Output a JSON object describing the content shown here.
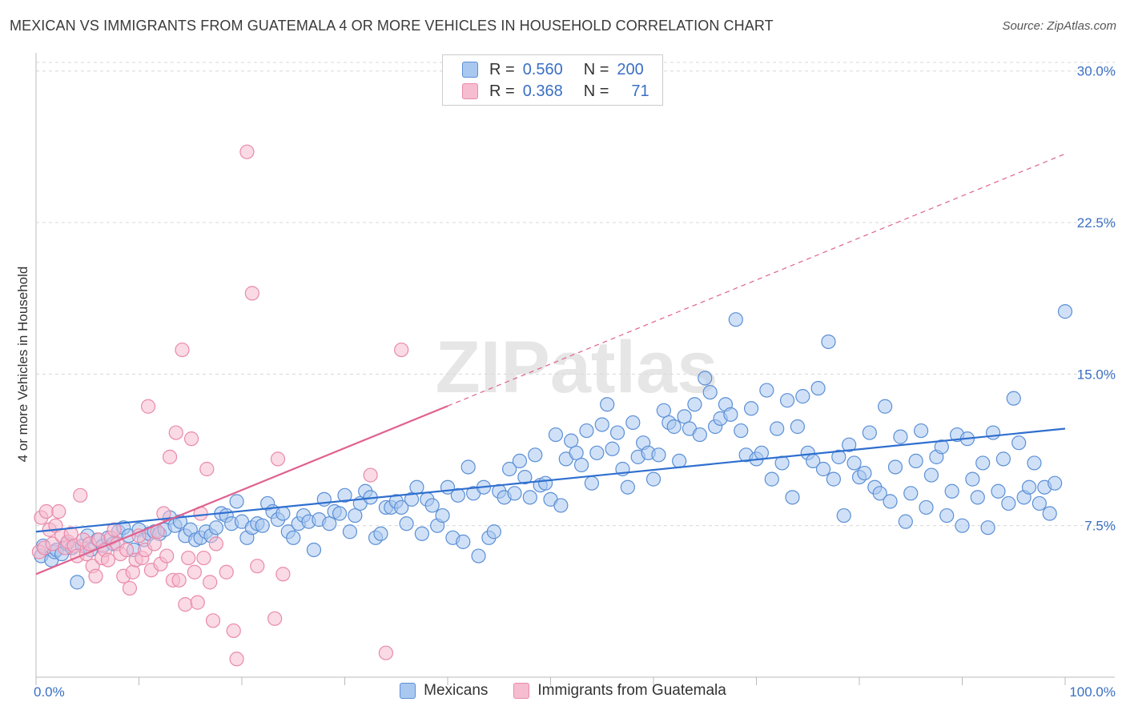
{
  "title": "MEXICAN VS IMMIGRANTS FROM GUATEMALA 4 OR MORE VEHICLES IN HOUSEHOLD CORRELATION CHART",
  "source": "Source: ZipAtlas.com",
  "watermark": "ZIPatlas",
  "colors": {
    "blue_fill": "#a9c8f0",
    "blue_stroke": "#5b8fd6",
    "blue_line": "#2f6fcf",
    "pink_fill": "#f6bcd0",
    "pink_stroke": "#e98aa9",
    "pink_line": "#e0618f",
    "grid": "#d8d8d8",
    "tick_label": "#3a6fc4"
  },
  "legend": {
    "rows": [
      {
        "r_label": "R =",
        "r_value": "0.560",
        "n_label": "N =",
        "n_value": "200"
      },
      {
        "r_label": "R =",
        "r_value": "0.368",
        "n_label": "N =",
        "n_value": "71"
      }
    ]
  },
  "bottom_legend": [
    "Mexicans",
    "Immigrants from Guatemala"
  ],
  "chart_data": {
    "type": "scatter",
    "title": "MEXICAN VS IMMIGRANTS FROM GUATEMALA 4 OR MORE VEHICLES IN HOUSEHOLD CORRELATION CHART",
    "xlabel": "",
    "ylabel": "4 or more Vehicles in Household",
    "xlim": [
      0,
      100
    ],
    "ylim": [
      0,
      30.9
    ],
    "x_tick_labels": [
      "0.0%",
      "100.0%"
    ],
    "y_ticks": [
      7.5,
      15.0,
      22.5,
      30.0
    ],
    "y_tick_labels": [
      "7.5%",
      "15.0%",
      "22.5%",
      "30.0%"
    ],
    "grid": true,
    "legend_position": "top-center",
    "series": [
      {
        "name": "Mexicans",
        "trend": {
          "x": [
            0,
            100
          ],
          "y": [
            7.2,
            12.3
          ],
          "style": "solid"
        },
        "points": [
          [
            0.5,
            6.0
          ],
          [
            0.7,
            6.5
          ],
          [
            1.5,
            5.8
          ],
          [
            1.8,
            6.2
          ],
          [
            2.0,
            6.3
          ],
          [
            2.5,
            6.1
          ],
          [
            3.0,
            6.6
          ],
          [
            3.5,
            6.4
          ],
          [
            4.0,
            4.7
          ],
          [
            4.5,
            6.5
          ],
          [
            5.0,
            7.0
          ],
          [
            5.3,
            6.3
          ],
          [
            6.0,
            6.8
          ],
          [
            6.5,
            6.5
          ],
          [
            7.0,
            6.9
          ],
          [
            7.5,
            6.6
          ],
          [
            8.0,
            7.2
          ],
          [
            8.5,
            7.4
          ],
          [
            9.0,
            7.0
          ],
          [
            9.5,
            6.3
          ],
          [
            10.0,
            7.3
          ],
          [
            10.5,
            6.8
          ],
          [
            11.0,
            7.1
          ],
          [
            11.5,
            7.2
          ],
          [
            12.0,
            7.1
          ],
          [
            12.5,
            7.3
          ],
          [
            13.0,
            7.9
          ],
          [
            13.5,
            7.5
          ],
          [
            14.0,
            7.7
          ],
          [
            14.5,
            7.0
          ],
          [
            15.0,
            7.3
          ],
          [
            15.5,
            6.8
          ],
          [
            16.0,
            6.9
          ],
          [
            16.5,
            7.2
          ],
          [
            17.0,
            7.0
          ],
          [
            17.5,
            7.4
          ],
          [
            18.0,
            8.1
          ],
          [
            18.5,
            8.0
          ],
          [
            19.0,
            7.6
          ],
          [
            19.5,
            8.7
          ],
          [
            20.0,
            7.7
          ],
          [
            20.5,
            6.9
          ],
          [
            21.0,
            7.4
          ],
          [
            21.5,
            7.6
          ],
          [
            22.0,
            7.5
          ],
          [
            22.5,
            8.6
          ],
          [
            23.0,
            8.2
          ],
          [
            23.5,
            7.8
          ],
          [
            24.0,
            8.1
          ],
          [
            24.5,
            7.2
          ],
          [
            25.0,
            6.9
          ],
          [
            25.5,
            7.6
          ],
          [
            26.0,
            8.0
          ],
          [
            26.5,
            7.7
          ],
          [
            27.0,
            6.3
          ],
          [
            27.5,
            7.8
          ],
          [
            28.0,
            8.8
          ],
          [
            28.5,
            7.6
          ],
          [
            29.0,
            8.2
          ],
          [
            29.5,
            8.1
          ],
          [
            30.0,
            9.0
          ],
          [
            30.5,
            7.2
          ],
          [
            31.0,
            8.0
          ],
          [
            31.5,
            8.6
          ],
          [
            32.0,
            9.2
          ],
          [
            32.5,
            8.9
          ],
          [
            33.0,
            6.9
          ],
          [
            33.5,
            7.1
          ],
          [
            34.0,
            8.4
          ],
          [
            34.5,
            8.4
          ],
          [
            35.0,
            8.7
          ],
          [
            35.5,
            8.4
          ],
          [
            36.0,
            7.6
          ],
          [
            36.5,
            8.8
          ],
          [
            37.0,
            9.4
          ],
          [
            37.5,
            7.1
          ],
          [
            38.0,
            8.8
          ],
          [
            38.5,
            8.5
          ],
          [
            39.0,
            7.5
          ],
          [
            39.5,
            8.0
          ],
          [
            40.0,
            9.4
          ],
          [
            40.5,
            6.9
          ],
          [
            41.0,
            9.0
          ],
          [
            41.5,
            6.7
          ],
          [
            42.0,
            10.4
          ],
          [
            42.5,
            9.1
          ],
          [
            43.0,
            6.0
          ],
          [
            43.5,
            9.4
          ],
          [
            44.0,
            6.9
          ],
          [
            44.5,
            7.2
          ],
          [
            45.0,
            9.2
          ],
          [
            45.5,
            8.9
          ],
          [
            46.0,
            10.3
          ],
          [
            46.5,
            9.1
          ],
          [
            47.0,
            10.7
          ],
          [
            47.5,
            9.9
          ],
          [
            48.0,
            8.9
          ],
          [
            48.5,
            11.0
          ],
          [
            49.0,
            9.5
          ],
          [
            49.5,
            9.6
          ],
          [
            50.0,
            8.8
          ],
          [
            50.5,
            12.0
          ],
          [
            51.0,
            8.5
          ],
          [
            51.5,
            10.8
          ],
          [
            52.0,
            11.7
          ],
          [
            52.5,
            11.1
          ],
          [
            53.0,
            10.5
          ],
          [
            53.5,
            12.2
          ],
          [
            54.0,
            9.6
          ],
          [
            54.5,
            11.1
          ],
          [
            55.0,
            12.5
          ],
          [
            55.5,
            13.5
          ],
          [
            56.0,
            11.3
          ],
          [
            56.5,
            12.1
          ],
          [
            57.0,
            10.3
          ],
          [
            57.5,
            9.4
          ],
          [
            58.0,
            12.6
          ],
          [
            58.5,
            10.9
          ],
          [
            59.0,
            11.6
          ],
          [
            59.5,
            11.1
          ],
          [
            60.0,
            9.8
          ],
          [
            60.5,
            11.0
          ],
          [
            61.0,
            13.2
          ],
          [
            61.5,
            12.6
          ],
          [
            62.0,
            12.4
          ],
          [
            62.5,
            10.7
          ],
          [
            63.0,
            12.9
          ],
          [
            63.5,
            12.3
          ],
          [
            64.0,
            13.5
          ],
          [
            64.5,
            12.0
          ],
          [
            65.0,
            14.8
          ],
          [
            65.5,
            14.1
          ],
          [
            66.0,
            12.4
          ],
          [
            66.5,
            12.8
          ],
          [
            67.0,
            13.5
          ],
          [
            67.5,
            13.0
          ],
          [
            68.0,
            17.7
          ],
          [
            68.5,
            12.2
          ],
          [
            69.0,
            11.0
          ],
          [
            69.5,
            13.3
          ],
          [
            70.0,
            10.8
          ],
          [
            70.5,
            11.1
          ],
          [
            71.0,
            14.2
          ],
          [
            71.5,
            9.8
          ],
          [
            72.0,
            12.3
          ],
          [
            72.5,
            10.6
          ],
          [
            73.0,
            13.7
          ],
          [
            73.5,
            8.9
          ],
          [
            74.0,
            12.4
          ],
          [
            74.5,
            13.9
          ],
          [
            75.0,
            11.1
          ],
          [
            75.5,
            10.7
          ],
          [
            76.0,
            14.3
          ],
          [
            76.5,
            10.3
          ],
          [
            77.0,
            16.6
          ],
          [
            77.5,
            9.8
          ],
          [
            78.0,
            10.9
          ],
          [
            78.5,
            8.0
          ],
          [
            79.0,
            11.5
          ],
          [
            79.5,
            10.6
          ],
          [
            80.0,
            9.9
          ],
          [
            80.5,
            10.1
          ],
          [
            81.0,
            12.1
          ],
          [
            81.5,
            9.4
          ],
          [
            82.0,
            9.1
          ],
          [
            82.5,
            13.4
          ],
          [
            83.0,
            8.7
          ],
          [
            83.5,
            10.4
          ],
          [
            84.0,
            11.9
          ],
          [
            84.5,
            7.7
          ],
          [
            85.0,
            9.1
          ],
          [
            85.5,
            10.7
          ],
          [
            86.0,
            12.2
          ],
          [
            86.5,
            8.4
          ],
          [
            87.0,
            10.0
          ],
          [
            87.5,
            10.9
          ],
          [
            88.0,
            11.4
          ],
          [
            88.5,
            8.0
          ],
          [
            89.0,
            9.2
          ],
          [
            89.5,
            12.0
          ],
          [
            90.0,
            7.5
          ],
          [
            90.5,
            11.8
          ],
          [
            91.0,
            9.8
          ],
          [
            91.5,
            8.9
          ],
          [
            92.0,
            10.6
          ],
          [
            92.5,
            7.4
          ],
          [
            93.0,
            12.1
          ],
          [
            93.5,
            9.2
          ],
          [
            94.0,
            10.8
          ],
          [
            94.5,
            8.6
          ],
          [
            95.0,
            13.8
          ],
          [
            95.5,
            11.6
          ],
          [
            96.0,
            8.9
          ],
          [
            96.5,
            9.4
          ],
          [
            97.0,
            10.6
          ],
          [
            97.5,
            8.6
          ],
          [
            98.0,
            9.4
          ],
          [
            98.5,
            8.1
          ],
          [
            99.0,
            9.6
          ],
          [
            100.0,
            18.1
          ]
        ]
      },
      {
        "name": "Immigrants from Guatemala",
        "trend": {
          "x": [
            0,
            100
          ],
          "y": [
            5.1,
            25.9
          ],
          "solid_until": 40,
          "style": "solid-then-dashed"
        },
        "points": [
          [
            0.3,
            6.2
          ],
          [
            0.5,
            7.9
          ],
          [
            0.8,
            6.4
          ],
          [
            1.0,
            8.2
          ],
          [
            1.3,
            7.3
          ],
          [
            1.6,
            6.6
          ],
          [
            1.9,
            7.5
          ],
          [
            2.2,
            8.2
          ],
          [
            2.5,
            7.0
          ],
          [
            2.8,
            6.4
          ],
          [
            3.1,
            6.7
          ],
          [
            3.4,
            7.1
          ],
          [
            3.7,
            6.5
          ],
          [
            4.0,
            6.0
          ],
          [
            4.3,
            9.0
          ],
          [
            4.6,
            6.8
          ],
          [
            4.9,
            6.1
          ],
          [
            5.2,
            6.6
          ],
          [
            5.5,
            5.5
          ],
          [
            5.8,
            5.0
          ],
          [
            6.1,
            6.8
          ],
          [
            6.4,
            5.9
          ],
          [
            6.7,
            6.3
          ],
          [
            7.0,
            5.8
          ],
          [
            7.3,
            6.9
          ],
          [
            7.6,
            7.3
          ],
          [
            7.9,
            6.6
          ],
          [
            8.2,
            6.1
          ],
          [
            8.5,
            5.0
          ],
          [
            8.8,
            6.3
          ],
          [
            9.1,
            4.4
          ],
          [
            9.4,
            5.2
          ],
          [
            9.7,
            5.8
          ],
          [
            10.0,
            7.0
          ],
          [
            10.3,
            5.9
          ],
          [
            10.6,
            6.3
          ],
          [
            10.9,
            13.4
          ],
          [
            11.2,
            5.3
          ],
          [
            11.5,
            6.6
          ],
          [
            11.8,
            7.2
          ],
          [
            12.1,
            5.6
          ],
          [
            12.4,
            8.1
          ],
          [
            12.7,
            6.0
          ],
          [
            13.0,
            10.9
          ],
          [
            13.3,
            4.8
          ],
          [
            13.6,
            12.1
          ],
          [
            13.9,
            4.8
          ],
          [
            14.2,
            16.2
          ],
          [
            14.5,
            3.6
          ],
          [
            14.8,
            5.9
          ],
          [
            15.1,
            11.8
          ],
          [
            15.4,
            5.2
          ],
          [
            15.7,
            3.7
          ],
          [
            16.0,
            8.1
          ],
          [
            16.3,
            5.9
          ],
          [
            16.6,
            10.3
          ],
          [
            16.9,
            4.7
          ],
          [
            17.2,
            2.8
          ],
          [
            17.5,
            6.6
          ],
          [
            18.5,
            5.2
          ],
          [
            19.2,
            2.3
          ],
          [
            19.5,
            0.9
          ],
          [
            20.5,
            26.0
          ],
          [
            21.0,
            19.0
          ],
          [
            21.5,
            5.5
          ],
          [
            23.2,
            2.9
          ],
          [
            23.5,
            10.8
          ],
          [
            24.0,
            5.1
          ],
          [
            32.5,
            10.0
          ],
          [
            34.0,
            1.2
          ],
          [
            35.5,
            16.2
          ]
        ]
      }
    ]
  }
}
